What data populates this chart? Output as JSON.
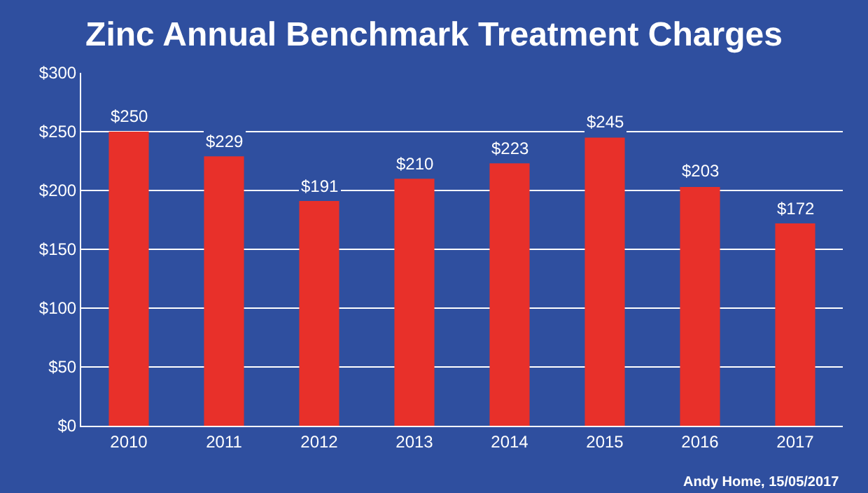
{
  "chart_data": {
    "type": "bar",
    "title": "Zinc Annual Benchmark Treatment Charges",
    "categories": [
      "2010",
      "2011",
      "2012",
      "2013",
      "2014",
      "2015",
      "2016",
      "2017"
    ],
    "values": [
      250,
      229,
      191,
      210,
      223,
      245,
      203,
      172
    ],
    "value_labels": [
      "$250",
      "$229",
      "$191",
      "$210",
      "$223",
      "$245",
      "$203",
      "$172"
    ],
    "color": "#e8302a",
    "ylim": [
      0,
      300
    ],
    "yticks": [
      {
        "value": 0,
        "label": "$0"
      },
      {
        "value": 50,
        "label": "$50"
      },
      {
        "value": 100,
        "label": "$100"
      },
      {
        "value": 150,
        "label": "$150"
      },
      {
        "value": 200,
        "label": "$200"
      },
      {
        "value": 250,
        "label": "$250"
      },
      {
        "value": 300,
        "label": "$300"
      }
    ],
    "grid": "y",
    "legend": false,
    "annotations": [
      "Andy Home, 15/05/2017"
    ]
  }
}
